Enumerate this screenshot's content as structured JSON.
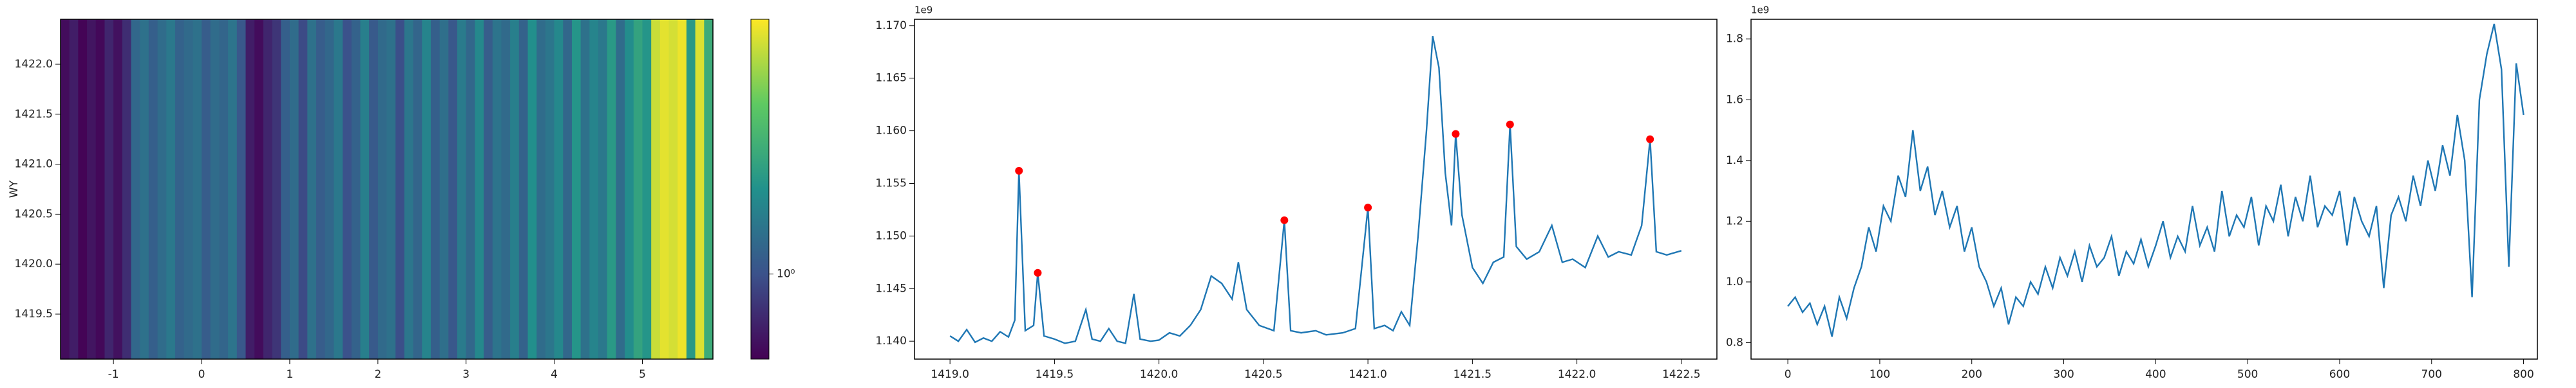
{
  "chart_data": [
    {
      "type": "heatmap",
      "ylabel": "WY",
      "xlim": [
        -1.6,
        5.8
      ],
      "xticks": [
        -1,
        0,
        1,
        2,
        3,
        4,
        5
      ],
      "ylim": [
        1419.05,
        1422.45
      ],
      "yticks": [
        1419.5,
        {
          "value": 1420.0,
          "label": "1420.0"
        },
        1420.5,
        {
          "value": 1421.0,
          "label": "1421.0"
        },
        1421.5,
        {
          "value": 1422.0,
          "label": "1422.0"
        }
      ],
      "clim": [
        0.794,
        1.995
      ],
      "log_color": true,
      "colorbar_ticks": [
        {
          "value": 1,
          "label": "10⁰"
        }
      ],
      "values": [
        0.82,
        0.86,
        0.8,
        0.84,
        0.81,
        0.88,
        0.83,
        0.9,
        1.08,
        1.12,
        1.05,
        1.1,
        1.15,
        1.06,
        1.09,
        1.12,
        1.04,
        1.1,
        1.07,
        1.13,
        1.02,
        0.86,
        0.82,
        0.88,
        0.92,
        1.05,
        1.1,
        0.98,
        1.12,
        1.04,
        1.08,
        1.15,
        1.0,
        1.06,
        1.18,
        1.03,
        1.09,
        1.12,
        0.99,
        1.14,
        1.07,
        1.2,
        1.05,
        1.11,
        1.02,
        1.16,
        1.08,
        1.22,
        1.04,
        1.13,
        1.09,
        1.18,
        1.06,
        1.25,
        1.1,
        1.14,
        1.22,
        1.08,
        1.28,
        1.12,
        1.2,
        1.15,
        1.3,
        1.1,
        1.24,
        1.35,
        1.28,
        1.85,
        1.92,
        1.88,
        1.95,
        1.3,
        1.9,
        1.4
      ]
    },
    {
      "type": "line",
      "offset_text": "1e9",
      "color": "#1f77b4",
      "xlim": [
        1418.83,
        1422.67
      ],
      "xticks": [
        {
          "value": 1419.0,
          "label": "1419.0"
        },
        1419.5,
        {
          "value": 1420.0,
          "label": "1420.0"
        },
        1420.5,
        {
          "value": 1421.0,
          "label": "1421.0"
        },
        1421.5,
        {
          "value": 1422.0,
          "label": "1422.0"
        },
        1422.5
      ],
      "ylim": [
        1.1383,
        1.1706
      ],
      "yticks": [
        {
          "value": 1.14,
          "label": "1.140"
        },
        1.145,
        {
          "value": 1.15,
          "label": "1.150"
        },
        1.155,
        {
          "value": 1.16,
          "label": "1.160"
        },
        1.165,
        {
          "value": 1.17,
          "label": "1.170"
        }
      ],
      "x": [
        1419.0,
        1419.04,
        1419.08,
        1419.12,
        1419.16,
        1419.2,
        1419.24,
        1419.28,
        1419.31,
        1419.33,
        1419.36,
        1419.4,
        1419.42,
        1419.45,
        1419.5,
        1419.55,
        1419.6,
        1419.65,
        1419.68,
        1419.72,
        1419.76,
        1419.8,
        1419.84,
        1419.88,
        1419.91,
        1419.96,
        1420.0,
        1420.05,
        1420.1,
        1420.15,
        1420.2,
        1420.25,
        1420.3,
        1420.35,
        1420.38,
        1420.42,
        1420.48,
        1420.55,
        1420.6,
        1420.63,
        1420.68,
        1420.75,
        1420.8,
        1420.88,
        1420.94,
        1421.0,
        1421.03,
        1421.08,
        1421.12,
        1421.16,
        1421.2,
        1421.24,
        1421.28,
        1421.31,
        1421.34,
        1421.37,
        1421.4,
        1421.42,
        1421.45,
        1421.5,
        1421.55,
        1421.6,
        1421.65,
        1421.68,
        1421.71,
        1421.76,
        1421.82,
        1421.88,
        1421.93,
        1421.98,
        1422.04,
        1422.1,
        1422.15,
        1422.2,
        1422.26,
        1422.31,
        1422.35,
        1422.38,
        1422.43,
        1422.5
      ],
      "values": [
        1.1405,
        1.14,
        1.1411,
        1.1399,
        1.1403,
        1.14,
        1.1409,
        1.1404,
        1.142,
        1.1562,
        1.141,
        1.1415,
        1.1465,
        1.1405,
        1.1402,
        1.1398,
        1.14,
        1.143,
        1.1402,
        1.14,
        1.1412,
        1.14,
        1.1398,
        1.1445,
        1.1402,
        1.14,
        1.1401,
        1.1408,
        1.1405,
        1.1415,
        1.143,
        1.1462,
        1.1455,
        1.144,
        1.1475,
        1.143,
        1.1415,
        1.141,
        1.1515,
        1.141,
        1.1408,
        1.141,
        1.1406,
        1.1408,
        1.1412,
        1.1527,
        1.1412,
        1.1415,
        1.141,
        1.1428,
        1.1415,
        1.15,
        1.16,
        1.169,
        1.166,
        1.156,
        1.151,
        1.1597,
        1.152,
        1.147,
        1.1455,
        1.1475,
        1.148,
        1.1606,
        1.149,
        1.1478,
        1.1485,
        1.151,
        1.1475,
        1.1478,
        1.147,
        1.15,
        1.148,
        1.1485,
        1.1482,
        1.151,
        1.1592,
        1.1485,
        1.1482,
        1.1486
      ],
      "points": {
        "color": "#ff0000",
        "x": [
          1419.33,
          1419.42,
          1420.6,
          1421.0,
          1421.42,
          1421.68,
          1422.35
        ],
        "values": [
          1.1562,
          1.1465,
          1.1515,
          1.1527,
          1.1597,
          1.1606,
          1.1592
        ]
      }
    },
    {
      "type": "line",
      "offset_text": "1e9",
      "color": "#1f77b4",
      "xlim": [
        -40,
        815
      ],
      "xticks": [
        0,
        100,
        200,
        300,
        400,
        500,
        600,
        700,
        800
      ],
      "ylim": [
        0.746,
        1.865
      ],
      "yticks": [
        0.8,
        {
          "value": 1.0,
          "label": "1.0"
        },
        1.2,
        1.4,
        1.6,
        1.8
      ],
      "x": [
        0,
        8,
        16,
        24,
        32,
        40,
        48,
        56,
        64,
        72,
        80,
        88,
        96,
        104,
        112,
        120,
        128,
        136,
        144,
        152,
        160,
        168,
        176,
        184,
        192,
        200,
        208,
        216,
        224,
        232,
        240,
        248,
        256,
        264,
        272,
        280,
        288,
        296,
        304,
        312,
        320,
        328,
        336,
        344,
        352,
        360,
        368,
        376,
        384,
        392,
        400,
        408,
        416,
        424,
        432,
        440,
        448,
        456,
        464,
        472,
        480,
        488,
        496,
        504,
        512,
        520,
        528,
        536,
        544,
        552,
        560,
        568,
        576,
        584,
        592,
        600,
        608,
        616,
        624,
        632,
        640,
        648,
        656,
        664,
        672,
        680,
        688,
        696,
        704,
        712,
        720,
        728,
        736,
        744,
        752,
        760,
        768,
        776,
        784,
        792,
        800
      ],
      "values": [
        0.92,
        0.95,
        0.9,
        0.93,
        0.86,
        0.92,
        0.82,
        0.95,
        0.88,
        0.98,
        1.05,
        1.18,
        1.1,
        1.25,
        1.2,
        1.35,
        1.28,
        1.5,
        1.3,
        1.38,
        1.22,
        1.3,
        1.18,
        1.25,
        1.1,
        1.18,
        1.05,
        1.0,
        0.92,
        0.98,
        0.86,
        0.95,
        0.92,
        1.0,
        0.96,
        1.05,
        0.98,
        1.08,
        1.02,
        1.1,
        1.0,
        1.12,
        1.05,
        1.08,
        1.15,
        1.02,
        1.1,
        1.06,
        1.14,
        1.05,
        1.12,
        1.2,
        1.08,
        1.15,
        1.1,
        1.25,
        1.12,
        1.18,
        1.1,
        1.3,
        1.15,
        1.22,
        1.18,
        1.28,
        1.12,
        1.25,
        1.2,
        1.32,
        1.15,
        1.28,
        1.2,
        1.35,
        1.18,
        1.25,
        1.22,
        1.3,
        1.12,
        1.28,
        1.2,
        1.15,
        1.25,
        0.98,
        1.22,
        1.28,
        1.2,
        1.35,
        1.25,
        1.4,
        1.3,
        1.45,
        1.35,
        1.55,
        1.4,
        0.95,
        1.6,
        1.75,
        1.85,
        1.7,
        1.05,
        1.72,
        1.55
      ]
    }
  ]
}
